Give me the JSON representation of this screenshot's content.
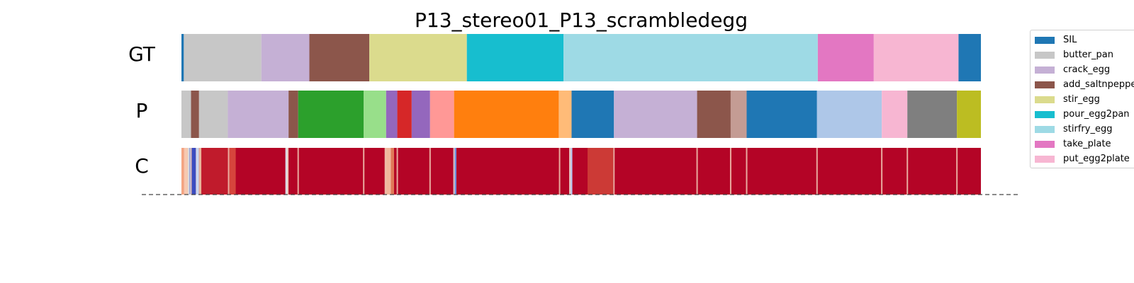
{
  "chart_data": {
    "type": "segmentation-strips",
    "title": "P13_stereo01_P13_scrambledegg",
    "row_labels": [
      "GT",
      "P",
      "C"
    ],
    "timeline_range": [
      0,
      1000
    ],
    "legend": [
      {
        "label": "SIL",
        "color": "#1f77b4"
      },
      {
        "label": "butter_pan",
        "color": "#c7c7c7"
      },
      {
        "label": "crack_egg",
        "color": "#c5b0d5"
      },
      {
        "label": "add_saltnpepper",
        "color": "#8c564b"
      },
      {
        "label": "stir_egg",
        "color": "#dbdb8d"
      },
      {
        "label": "pour_egg2pan",
        "color": "#17becf"
      },
      {
        "label": "stirfry_egg",
        "color": "#9edae5"
      },
      {
        "label": "take_plate",
        "color": "#e377c2"
      },
      {
        "label": "put_egg2plate",
        "color": "#f7b6d2"
      }
    ],
    "gt_segments": [
      {
        "start": 0,
        "end": 3,
        "color": "#1f77b4"
      },
      {
        "start": 3,
        "end": 100,
        "color": "#c7c7c7"
      },
      {
        "start": 100,
        "end": 160,
        "color": "#c5b0d5"
      },
      {
        "start": 160,
        "end": 235,
        "color": "#8c564b"
      },
      {
        "start": 235,
        "end": 357,
        "color": "#dbdb8d"
      },
      {
        "start": 357,
        "end": 478,
        "color": "#17becf"
      },
      {
        "start": 478,
        "end": 796,
        "color": "#9edae5"
      },
      {
        "start": 796,
        "end": 866,
        "color": "#e377c2"
      },
      {
        "start": 866,
        "end": 972,
        "color": "#f7b6d2"
      },
      {
        "start": 972,
        "end": 1000,
        "color": "#1f77b4"
      }
    ],
    "p_segments": [
      {
        "start": 0,
        "end": 12,
        "color": "#c7c7c7"
      },
      {
        "start": 12,
        "end": 22,
        "color": "#8c564b"
      },
      {
        "start": 22,
        "end": 58,
        "color": "#c7c7c7"
      },
      {
        "start": 58,
        "end": 134,
        "color": "#c5b0d5"
      },
      {
        "start": 134,
        "end": 146,
        "color": "#8c564b"
      },
      {
        "start": 146,
        "end": 228,
        "color": "#2ca02c"
      },
      {
        "start": 228,
        "end": 256,
        "color": "#98df8a"
      },
      {
        "start": 256,
        "end": 270,
        "color": "#9467bd"
      },
      {
        "start": 270,
        "end": 288,
        "color": "#d62728"
      },
      {
        "start": 288,
        "end": 311,
        "color": "#9467bd"
      },
      {
        "start": 311,
        "end": 341,
        "color": "#ff9896"
      },
      {
        "start": 341,
        "end": 472,
        "color": "#ff7f0e"
      },
      {
        "start": 472,
        "end": 488,
        "color": "#ffbb78"
      },
      {
        "start": 488,
        "end": 541,
        "color": "#1f77b4"
      },
      {
        "start": 541,
        "end": 645,
        "color": "#c5b0d5"
      },
      {
        "start": 645,
        "end": 687,
        "color": "#8c564b"
      },
      {
        "start": 687,
        "end": 707,
        "color": "#c49c94"
      },
      {
        "start": 707,
        "end": 795,
        "color": "#1f77b4"
      },
      {
        "start": 795,
        "end": 876,
        "color": "#aec7e8"
      },
      {
        "start": 876,
        "end": 908,
        "color": "#f7b6d2"
      },
      {
        "start": 908,
        "end": 970,
        "color": "#7f7f7f"
      },
      {
        "start": 970,
        "end": 1000,
        "color": "#bcbd22"
      }
    ],
    "confidence_strip": {
      "colormap": "coolwarm",
      "base_color": "#b40426",
      "segments": [
        {
          "start": 0,
          "end": 3,
          "color": "#f4a582"
        },
        {
          "start": 3,
          "end": 8,
          "color": "#f7c9b0"
        },
        {
          "start": 8,
          "end": 10,
          "color": "#dddddd"
        },
        {
          "start": 10,
          "end": 12,
          "color": "#8fb0f0"
        },
        {
          "start": 12,
          "end": 18,
          "color": "#3b4cc0"
        },
        {
          "start": 18,
          "end": 22,
          "color": "#c9d7f0"
        },
        {
          "start": 22,
          "end": 25,
          "color": "#e8b49a"
        },
        {
          "start": 25,
          "end": 60,
          "color": "#c01b2c"
        },
        {
          "start": 60,
          "end": 68,
          "color": "#d6453c"
        },
        {
          "start": 68,
          "end": 130,
          "color": "#b40426"
        },
        {
          "start": 130,
          "end": 134,
          "color": "#dcdde8"
        },
        {
          "start": 134,
          "end": 255,
          "color": "#b40426"
        },
        {
          "start": 255,
          "end": 262,
          "color": "#f0b89d"
        },
        {
          "start": 262,
          "end": 266,
          "color": "#e07858"
        },
        {
          "start": 266,
          "end": 340,
          "color": "#b40426"
        },
        {
          "start": 340,
          "end": 344,
          "color": "#6f8fe0"
        },
        {
          "start": 344,
          "end": 485,
          "color": "#b40426"
        },
        {
          "start": 485,
          "end": 489,
          "color": "#b8c8ee"
        },
        {
          "start": 489,
          "end": 508,
          "color": "#b40426"
        },
        {
          "start": 508,
          "end": 540,
          "color": "#cc3a36"
        },
        {
          "start": 540,
          "end": 1000,
          "color": "#b40426"
        }
      ],
      "tick_marks": [
        12,
        59,
        133,
        146,
        228,
        255,
        270,
        311,
        341,
        473,
        486,
        541,
        645,
        687,
        707,
        795,
        876,
        908,
        970
      ]
    }
  }
}
